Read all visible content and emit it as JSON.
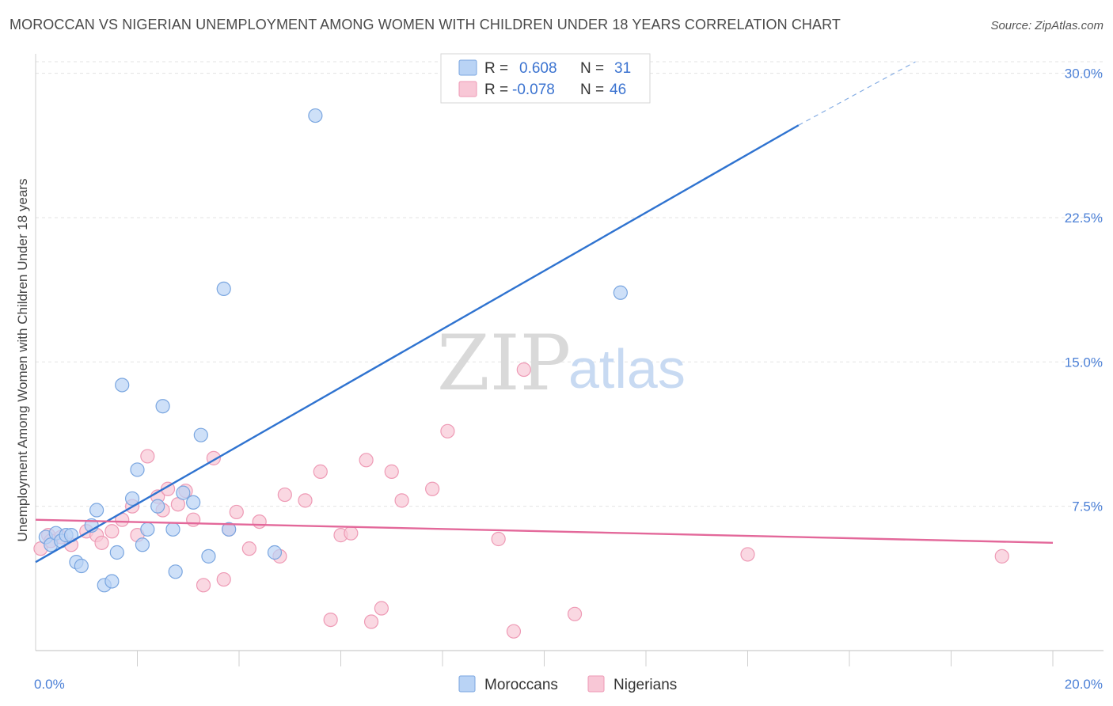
{
  "title": "MOROCCAN VS NIGERIAN UNEMPLOYMENT AMONG WOMEN WITH CHILDREN UNDER 18 YEARS CORRELATION CHART",
  "source": "Source: ZipAtlas.com",
  "watermark": {
    "part1": "ZIP",
    "part2": "atlas"
  },
  "colors": {
    "moroccans_fill": "#b9d3f5",
    "moroccans_stroke": "#7aa6e0",
    "moroccans_line": "#2f73d0",
    "nigerians_fill": "#f8c7d6",
    "nigerians_stroke": "#ee9ab5",
    "nigerians_line": "#e3689a",
    "axis_label": "#4a7fd6",
    "grid": "#e3e3e3"
  },
  "legend": {
    "rows": [
      {
        "r_label": "R =",
        "r_value": "0.608",
        "n_label": "N =",
        "n_value": "31"
      },
      {
        "r_label": "R =",
        "r_value": "-0.078",
        "n_label": "N =",
        "n_value": "46"
      }
    ]
  },
  "chart_data": {
    "type": "scatter",
    "title": "MOROCCAN VS NIGERIAN UNEMPLOYMENT AMONG WOMEN WITH CHILDREN UNDER 18 YEARS CORRELATION CHART",
    "xlabel": "",
    "ylabel": "Unemployment Among Women with Children Under 18 years",
    "xlim": [
      0,
      20
    ],
    "ylim": [
      0,
      30.6
    ],
    "x_tick_labels": [
      "0.0%",
      "20.0%"
    ],
    "y_ticks": [
      7.5,
      15.0,
      22.5,
      30.0
    ],
    "y_tick_labels": [
      "7.5%",
      "15.0%",
      "22.5%",
      "30.0%"
    ],
    "grid": true,
    "legend_placement": "top-center",
    "series": [
      {
        "name": "Moroccans",
        "r": 0.608,
        "n": 31,
        "trend": {
          "x": [
            0.0,
            15.0
          ],
          "y": [
            4.6,
            27.3
          ],
          "dashed_extension_to": [
            17.3,
            30.6
          ]
        },
        "points": [
          [
            0.2,
            5.9
          ],
          [
            0.3,
            5.5
          ],
          [
            0.4,
            6.1
          ],
          [
            0.5,
            5.7
          ],
          [
            0.6,
            6.0
          ],
          [
            0.7,
            6.0
          ],
          [
            0.8,
            4.6
          ],
          [
            0.9,
            4.4
          ],
          [
            1.1,
            6.5
          ],
          [
            1.2,
            7.3
          ],
          [
            1.35,
            3.4
          ],
          [
            1.5,
            3.6
          ],
          [
            1.6,
            5.1
          ],
          [
            1.7,
            13.8
          ],
          [
            1.9,
            7.9
          ],
          [
            2.0,
            9.4
          ],
          [
            2.1,
            5.5
          ],
          [
            2.2,
            6.3
          ],
          [
            2.4,
            7.5
          ],
          [
            2.5,
            12.7
          ],
          [
            2.7,
            6.3
          ],
          [
            2.75,
            4.1
          ],
          [
            2.9,
            8.2
          ],
          [
            3.1,
            7.7
          ],
          [
            3.25,
            11.2
          ],
          [
            3.4,
            4.9
          ],
          [
            3.7,
            18.8
          ],
          [
            3.8,
            6.3
          ],
          [
            4.7,
            5.1
          ],
          [
            5.5,
            27.8
          ],
          [
            11.5,
            18.6
          ]
        ]
      },
      {
        "name": "Nigerians",
        "r": -0.078,
        "n": 46,
        "trend": {
          "x": [
            0.0,
            20.0
          ],
          "y": [
            6.8,
            5.6
          ]
        },
        "points": [
          [
            0.1,
            5.3
          ],
          [
            0.25,
            6.0
          ],
          [
            0.5,
            5.9
          ],
          [
            0.7,
            5.5
          ],
          [
            1.0,
            6.2
          ],
          [
            1.2,
            6.0
          ],
          [
            1.3,
            5.6
          ],
          [
            1.5,
            6.2
          ],
          [
            1.7,
            6.8
          ],
          [
            1.9,
            7.5
          ],
          [
            2.0,
            6.0
          ],
          [
            2.2,
            10.1
          ],
          [
            2.4,
            8.0
          ],
          [
            2.5,
            7.3
          ],
          [
            2.6,
            8.4
          ],
          [
            2.8,
            7.6
          ],
          [
            2.95,
            8.3
          ],
          [
            3.1,
            6.8
          ],
          [
            3.3,
            3.4
          ],
          [
            3.5,
            10.0
          ],
          [
            3.7,
            3.7
          ],
          [
            3.8,
            6.3
          ],
          [
            3.95,
            7.2
          ],
          [
            4.2,
            5.3
          ],
          [
            4.4,
            6.7
          ],
          [
            4.9,
            8.1
          ],
          [
            4.8,
            4.9
          ],
          [
            5.3,
            7.8
          ],
          [
            5.6,
            9.3
          ],
          [
            5.8,
            1.6
          ],
          [
            6.0,
            6.0
          ],
          [
            6.2,
            6.1
          ],
          [
            6.5,
            9.9
          ],
          [
            6.6,
            1.5
          ],
          [
            6.8,
            2.2
          ],
          [
            7.0,
            9.3
          ],
          [
            7.2,
            7.8
          ],
          [
            7.8,
            8.4
          ],
          [
            8.1,
            11.4
          ],
          [
            9.1,
            5.8
          ],
          [
            9.4,
            1.0
          ],
          [
            9.6,
            14.6
          ],
          [
            10.6,
            1.9
          ],
          [
            14.0,
            5.0
          ],
          [
            19.0,
            4.9
          ],
          [
            0.3,
            5.7
          ]
        ]
      }
    ]
  }
}
